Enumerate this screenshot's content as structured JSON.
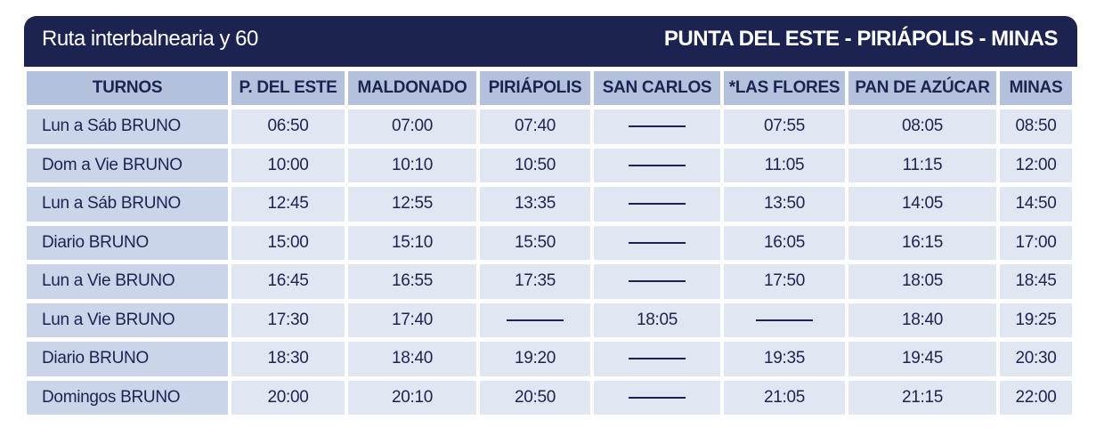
{
  "header": {
    "title": "Ruta interbalnearia y 60",
    "route": "PUNTA DEL ESTE - PIRIÁPOLIS - MINAS"
  },
  "table": {
    "columns": [
      "TURNOS",
      "P. DEL ESTE",
      "MALDONADO",
      "PIRIÁPOLIS",
      "SAN CARLOS",
      "*LAS FLORES",
      "PAN DE AZÚCAR",
      "MINAS"
    ],
    "rows": [
      [
        "Lun a Sáb BRUNO",
        "06:50",
        "07:00",
        "07:40",
        null,
        "07:55",
        "08:05",
        "08:50"
      ],
      [
        "Dom a Vie BRUNO",
        "10:00",
        "10:10",
        "10:50",
        null,
        "11:05",
        "11:15",
        "12:00"
      ],
      [
        "Lun a Sáb BRUNO",
        "12:45",
        "12:55",
        "13:35",
        null,
        "13:50",
        "14:05",
        "14:50"
      ],
      [
        "Diario BRUNO",
        "15:00",
        "15:10",
        "15:50",
        null,
        "16:05",
        "16:15",
        "17:00"
      ],
      [
        "Lun a Vie BRUNO",
        "16:45",
        "16:55",
        "17:35",
        null,
        "17:50",
        "18:05",
        "18:45"
      ],
      [
        "Lun a Vie BRUNO",
        "17:30",
        "17:40",
        null,
        "18:05",
        null,
        "18:40",
        "19:25"
      ],
      [
        "Diario BRUNO",
        "18:30",
        "18:40",
        "19:20",
        null,
        "19:35",
        "19:45",
        "20:30"
      ],
      [
        "Domingos BRUNO",
        "20:00",
        "20:10",
        "20:50",
        null,
        "21:05",
        "21:15",
        "22:00"
      ]
    ]
  }
}
